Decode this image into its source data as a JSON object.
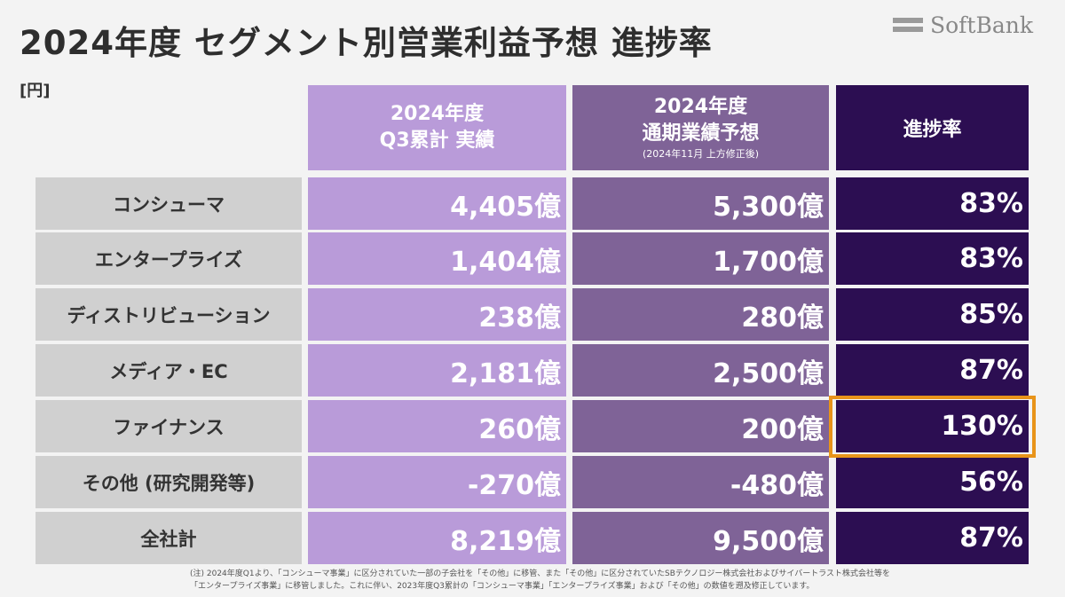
{
  "header": {
    "title": "2024年度 セグメント別営業利益予想 進捗率",
    "unit": "[円]",
    "logo_text": "SoftBank"
  },
  "columns": {
    "actual": [
      "2024年度",
      "Q3累計 実績"
    ],
    "forecast": [
      "2024年度",
      "通期業績予想"
    ],
    "forecast_note": "(2024年11月 上方修正後)",
    "rate": "進捗率"
  },
  "rows": [
    {
      "segment": "コンシューマ",
      "actual": "4,405億",
      "forecast": "5,300億",
      "rate": "83%"
    },
    {
      "segment": "エンタープライズ",
      "actual": "1,404億",
      "forecast": "1,700億",
      "rate": "83%"
    },
    {
      "segment": "ディストリビューション",
      "actual": "238億",
      "forecast": "280億",
      "rate": "85%"
    },
    {
      "segment": "メディア・EC",
      "actual": "2,181億",
      "forecast": "2,500億",
      "rate": "87%"
    },
    {
      "segment": "ファイナンス",
      "actual": "260億",
      "forecast": "200億",
      "rate": "130%"
    },
    {
      "segment": "その他 (研究開発等)",
      "actual": "-270億",
      "forecast": "-480億",
      "rate": "56%"
    },
    {
      "segment": "全社計",
      "actual": "8,219億",
      "forecast": "9,500億",
      "rate": "87%"
    }
  ],
  "footnote": [
    "(注) 2024年度Q1より、「コンシューマ事業」に区分されていた一部の子会社を「その他」に移管、また「その他」に区分されていたSBテクノロジー株式会社およびサイバートラスト株式会社等を",
    "「エンタープライズ事業」に移管しました。これに伴い、2023年度Q3累計の「コンシューマ事業」「エンタープライズ事業」および「その他」の数値を遡及修正しています。"
  ],
  "colors": {
    "actual": "#b99bd9",
    "forecast": "#7f6397",
    "rate": "#2c0e52",
    "label": "#d0d0d0",
    "highlight": "#e8941a"
  }
}
